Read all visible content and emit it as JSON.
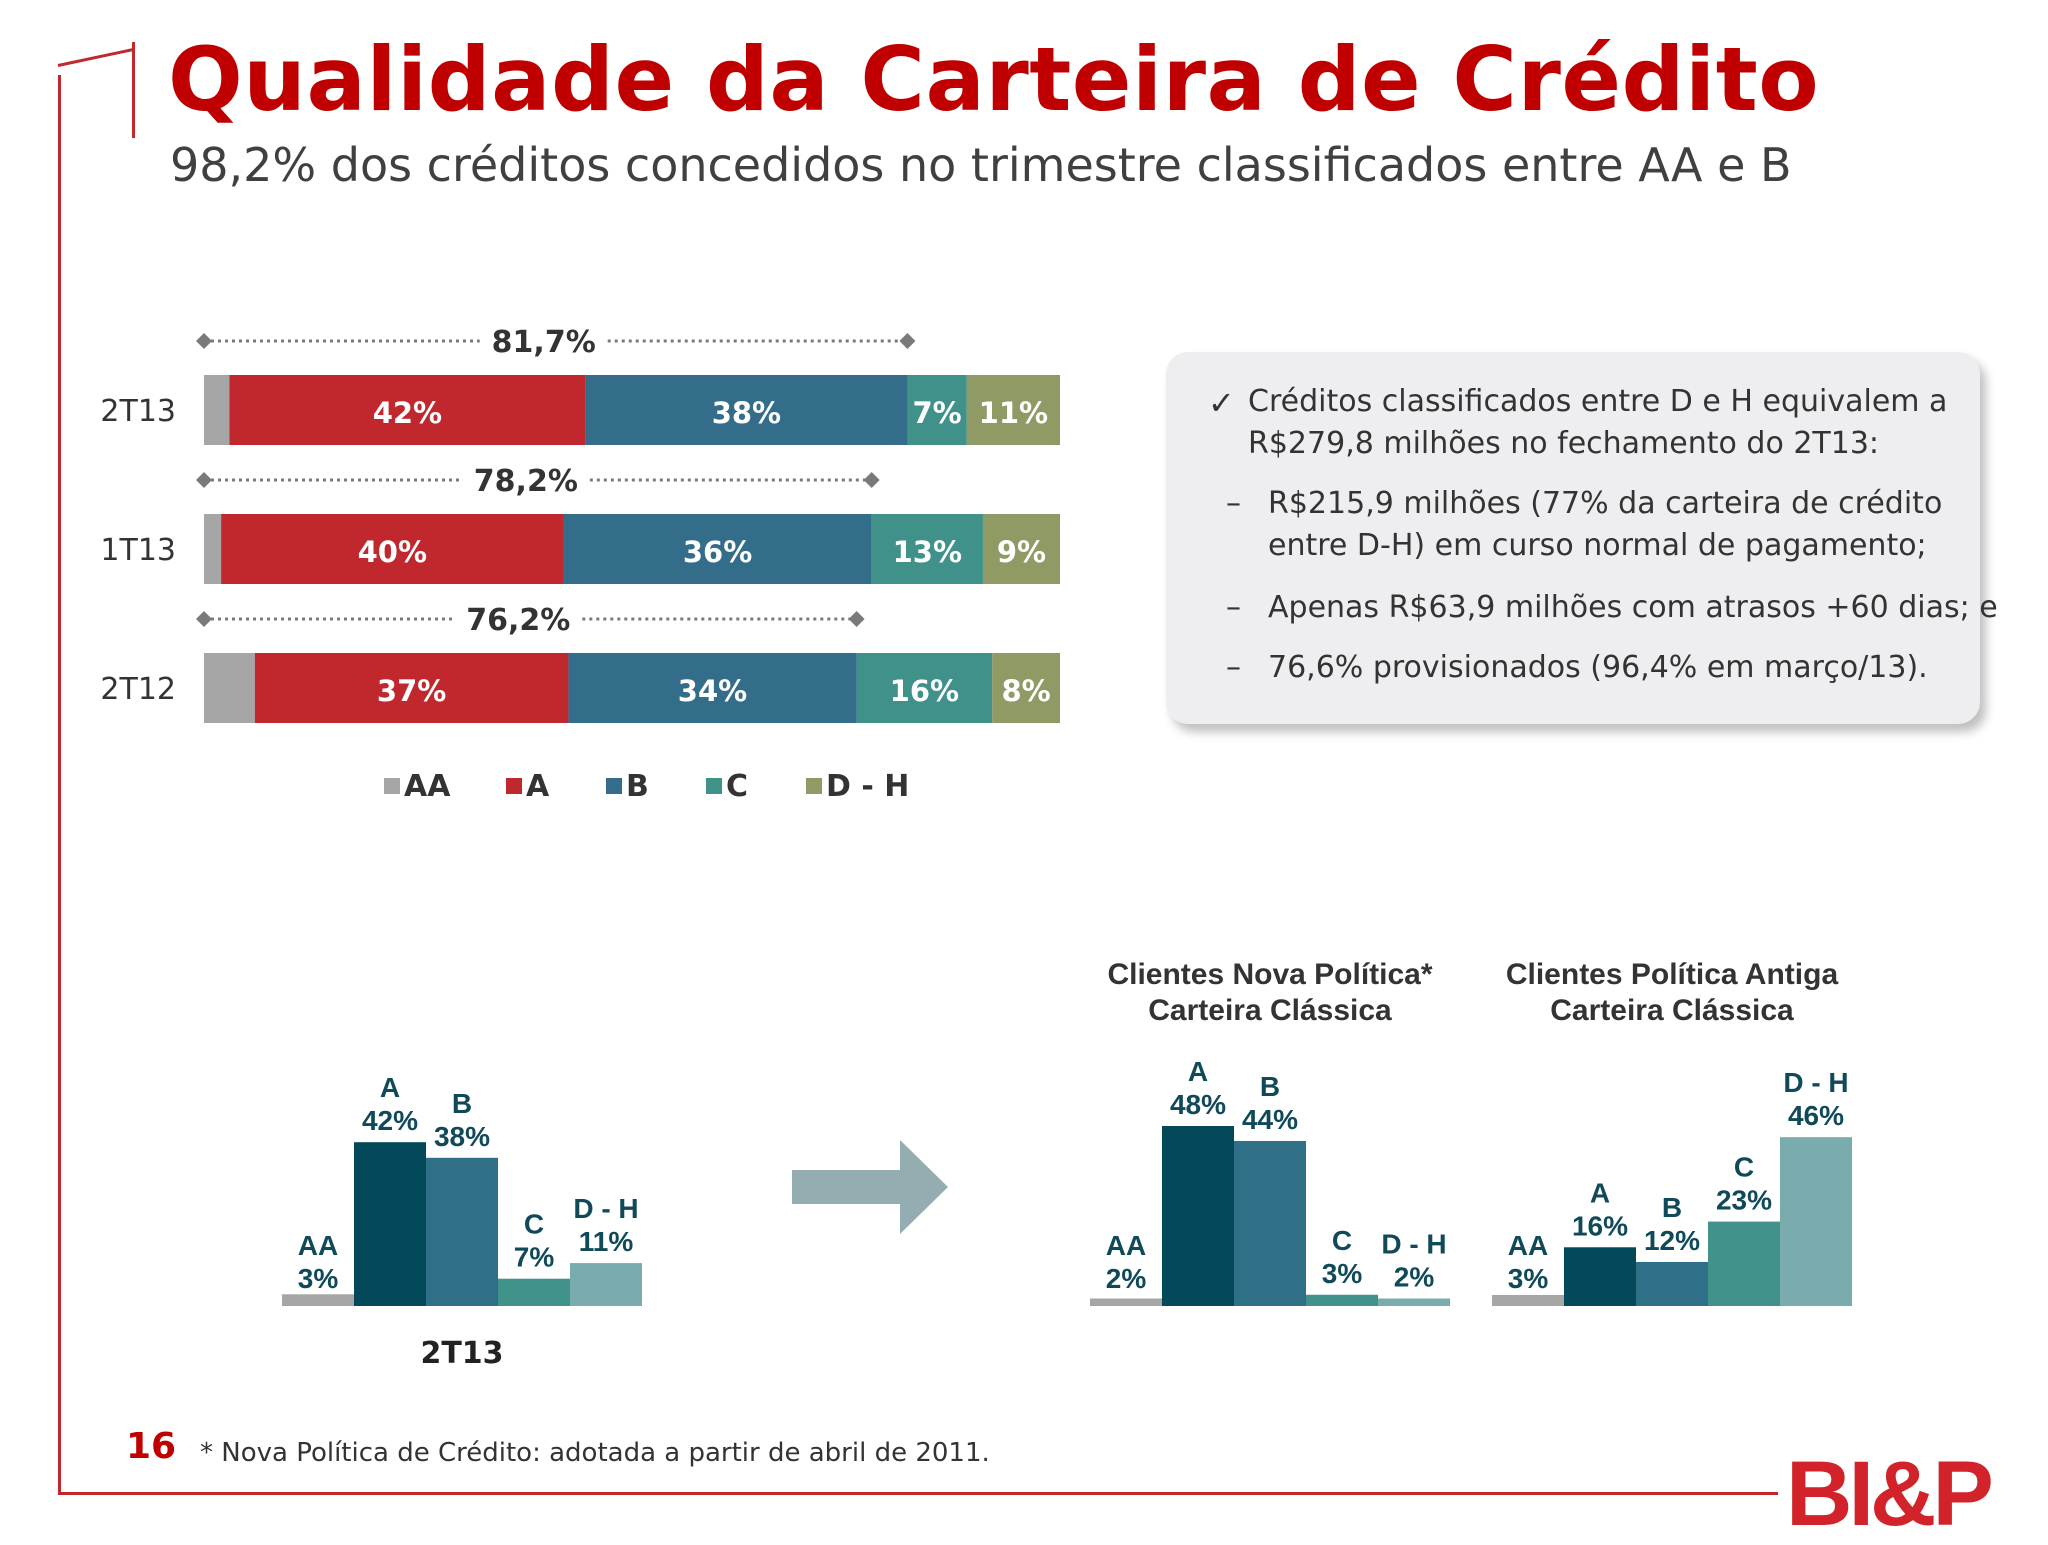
{
  "title": "Qualidade da Carteira de Crédito",
  "subtitle": "98,2% dos créditos concedidos no trimestre classificados entre AA e B",
  "callout": {
    "check_mark": "✓",
    "line1": "Créditos classificados entre D e H equivalem a",
    "line2": "R$279,8 milhões no fechamento do 2T13:",
    "bullets": [
      {
        "dash": "–",
        "lines": [
          "R$215,9 milhões (77% da carteira de crédito",
          "entre D-H) em curso normal de pagamento;"
        ]
      },
      {
        "dash": "–",
        "lines": [
          "Apenas R$63,9 milhões com atrasos +60 dias; e"
        ]
      },
      {
        "dash": "–",
        "lines": [
          "76,6% provisionados (96,4% em março/13)."
        ]
      }
    ]
  },
  "colors": {
    "AA": "#a6a6a6",
    "A": "#c0282e",
    "B": "#336d8a",
    "C": "#3f9189",
    "DH": "#8f9a65",
    "dark_teal": "#03495a",
    "mid_teal": "#2f6f88",
    "green_teal": "#40928a",
    "light_teal": "#7aabad",
    "arrow": "#94adb0",
    "brand_red": "#c00000"
  },
  "chart_data": [
    {
      "type": "bar",
      "orientation": "horizontal-stacked-100",
      "categories": [
        "2T13",
        "1T13",
        "2T12"
      ],
      "series": [
        {
          "name": "AA",
          "values": [
            3,
            2,
            6
          ],
          "labels": [
            "3%",
            "2%",
            "6%"
          ]
        },
        {
          "name": "A",
          "values": [
            42,
            40,
            37
          ],
          "labels": [
            "42%",
            "40%",
            "37%"
          ]
        },
        {
          "name": "B",
          "values": [
            38,
            36,
            34
          ],
          "labels": [
            "38%",
            "36%",
            "34%"
          ]
        },
        {
          "name": "C",
          "values": [
            7,
            13,
            16
          ],
          "labels": [
            "7%",
            "13%",
            "16%"
          ]
        },
        {
          "name": "D - H",
          "values": [
            11,
            9,
            8
          ],
          "labels": [
            "11%",
            "9%",
            "8%"
          ]
        }
      ],
      "brackets": [
        "81,7%",
        "78,2%",
        "76,2%"
      ],
      "legend": "bottom"
    },
    {
      "type": "bar",
      "title": "",
      "xlabel": "2T13",
      "categories": [
        "AA",
        "A",
        "B",
        "C",
        "D - H"
      ],
      "values": [
        3,
        42,
        38,
        7,
        11
      ],
      "labels": [
        "3%",
        "42%",
        "38%",
        "7%",
        "11%"
      ]
    },
    {
      "type": "bar",
      "title": "Clientes Nova Política*",
      "subtitle": "Carteira Clássica",
      "categories": [
        "AA",
        "A",
        "B",
        "C",
        "D - H"
      ],
      "values": [
        2,
        48,
        44,
        3,
        2
      ],
      "labels": [
        "2%",
        "48%",
        "44%",
        "3%",
        "2%"
      ]
    },
    {
      "type": "bar",
      "title": "Clientes Política Antiga",
      "subtitle": "Carteira Clássica",
      "categories": [
        "AA",
        "A",
        "B",
        "C",
        "D - H"
      ],
      "values": [
        3,
        16,
        12,
        23,
        46
      ],
      "labels": [
        "3%",
        "16%",
        "12%",
        "23%",
        "46%"
      ]
    }
  ],
  "footnote": "* Nova Política de Crédito: adotada a partir de  abril de 2011.",
  "page_number": "16",
  "logo_text": "BI&P"
}
